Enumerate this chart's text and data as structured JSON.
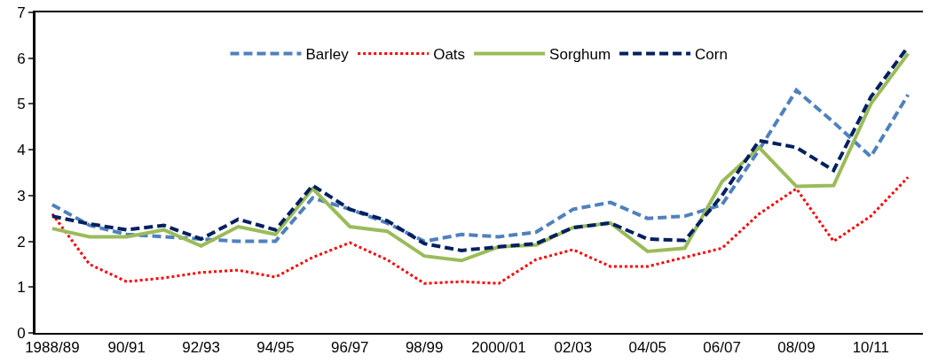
{
  "chart_data": {
    "type": "line",
    "categories": [
      "1988/89",
      null,
      "90/91",
      null,
      "92/93",
      null,
      "94/95",
      null,
      "96/97",
      null,
      "98/99",
      null,
      "2000/01",
      null,
      "02/03",
      null,
      "04/05",
      null,
      "06/07",
      null,
      "08/09",
      null,
      "10/11",
      null
    ],
    "series": [
      {
        "name": "Barley",
        "color": "#4f81bd",
        "line_style": "dashed",
        "values": [
          2.8,
          2.35,
          2.15,
          2.1,
          2.05,
          2.0,
          2.0,
          2.95,
          2.7,
          2.4,
          2.0,
          2.15,
          2.1,
          2.2,
          2.7,
          2.85,
          2.5,
          2.55,
          2.8,
          4.0,
          5.3,
          4.6,
          3.85,
          5.2
        ]
      },
      {
        "name": "Oats",
        "color": "#ff0000",
        "line_style": "dotted",
        "values": [
          2.6,
          1.5,
          1.12,
          1.2,
          1.32,
          1.37,
          1.22,
          1.65,
          1.97,
          1.6,
          1.08,
          1.12,
          1.08,
          1.6,
          1.82,
          1.45,
          1.45,
          1.65,
          1.85,
          2.6,
          3.15,
          2.0,
          2.55,
          3.4
        ]
      },
      {
        "name": "Sorghum",
        "color": "#9bbb59",
        "line_style": "solid",
        "values": [
          2.28,
          2.1,
          2.1,
          2.25,
          1.9,
          2.32,
          2.15,
          3.15,
          2.32,
          2.22,
          1.68,
          1.58,
          1.88,
          1.92,
          2.3,
          2.4,
          1.78,
          1.85,
          3.3,
          4.05,
          3.2,
          3.22,
          5.0,
          6.1
        ]
      },
      {
        "name": "Corn",
        "color": "#002060",
        "line_style": "dashed",
        "values": [
          2.55,
          2.38,
          2.25,
          2.35,
          2.05,
          2.48,
          2.25,
          3.22,
          2.7,
          2.45,
          1.95,
          1.8,
          1.88,
          1.95,
          2.3,
          2.4,
          2.05,
          2.02,
          3.0,
          4.2,
          4.05,
          3.55,
          5.15,
          6.25
        ]
      }
    ],
    "ylim": [
      0,
      7
    ],
    "yticks": [
      0,
      1,
      2,
      3,
      4,
      5,
      6,
      7
    ],
    "grid": false,
    "legend": "top",
    "marker": "none"
  }
}
